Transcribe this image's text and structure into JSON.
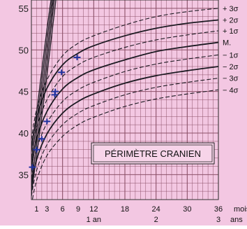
{
  "chart_data": {
    "type": "line",
    "title": "PÉRIMÈTRE CRANIEN",
    "xlabel": "",
    "ylabel": "",
    "x_unit_label": "mois",
    "x_unit_label_years": "ans",
    "xlim": [
      0,
      36
    ],
    "ylim": [
      32,
      56
    ],
    "x_ticks": [
      {
        "value": 1,
        "label": "1"
      },
      {
        "value": 3,
        "label": "3"
      },
      {
        "value": 6,
        "label": "6"
      },
      {
        "value": 9,
        "label": "9"
      },
      {
        "value": 12,
        "label": "12"
      },
      {
        "value": 18,
        "label": "18"
      },
      {
        "value": 24,
        "label": "24"
      },
      {
        "value": 30,
        "label": "30"
      },
      {
        "value": 36,
        "label": "36"
      }
    ],
    "x_year_ticks": [
      {
        "value": 12,
        "label": "1 an"
      },
      {
        "value": 24,
        "label": "2"
      },
      {
        "value": 36,
        "label": "3"
      }
    ],
    "y_ticks": [
      35,
      40,
      45,
      50,
      55
    ],
    "grid": true,
    "colors": {
      "background": "#f3c7e2",
      "grid": "#8c5068",
      "curves": "#1c1a22",
      "markers": "#2233a0"
    },
    "series": [
      {
        "name": "+3σ",
        "style": "dashed",
        "points": [
          [
            0,
            39.2
          ],
          [
            1,
            42.8
          ],
          [
            3,
            46.4
          ],
          [
            6,
            49.3
          ],
          [
            9,
            50.8
          ],
          [
            12,
            51.7
          ],
          [
            18,
            53.0
          ],
          [
            24,
            54.0
          ],
          [
            30,
            54.6
          ],
          [
            36,
            55.0
          ]
        ]
      },
      {
        "name": "+2σ",
        "style": "solid",
        "points": [
          [
            0,
            38.2
          ],
          [
            1,
            41.8
          ],
          [
            3,
            45.4
          ],
          [
            6,
            48.2
          ],
          [
            9,
            49.6
          ],
          [
            12,
            50.5
          ],
          [
            18,
            51.7
          ],
          [
            24,
            52.6
          ],
          [
            30,
            53.2
          ],
          [
            36,
            53.6
          ]
        ]
      },
      {
        "name": "+1σ",
        "style": "dashed",
        "points": [
          [
            0,
            37.0
          ],
          [
            1,
            40.6
          ],
          [
            3,
            44.0
          ],
          [
            6,
            46.8
          ],
          [
            9,
            48.2
          ],
          [
            12,
            49.1
          ],
          [
            18,
            50.3
          ],
          [
            24,
            51.2
          ],
          [
            30,
            51.8
          ],
          [
            36,
            52.3
          ]
        ]
      },
      {
        "name": "M.",
        "style": "solid",
        "points": [
          [
            0,
            35.8
          ],
          [
            1,
            39.3
          ],
          [
            3,
            42.6
          ],
          [
            6,
            45.3
          ],
          [
            9,
            46.7
          ],
          [
            12,
            47.6
          ],
          [
            18,
            48.8
          ],
          [
            24,
            49.8
          ],
          [
            30,
            50.4
          ],
          [
            36,
            50.9
          ]
        ]
      },
      {
        "name": "−1σ",
        "style": "dashed",
        "points": [
          [
            0,
            34.5
          ],
          [
            1,
            38.0
          ],
          [
            3,
            41.2
          ],
          [
            6,
            43.8
          ],
          [
            9,
            45.2
          ],
          [
            12,
            46.1
          ],
          [
            18,
            47.4
          ],
          [
            24,
            48.3
          ],
          [
            30,
            48.9
          ],
          [
            36,
            49.4
          ]
        ]
      },
      {
        "name": "−2σ",
        "style": "solid",
        "points": [
          [
            0,
            33.5
          ],
          [
            1,
            36.8
          ],
          [
            3,
            39.9
          ],
          [
            6,
            42.4
          ],
          [
            9,
            43.8
          ],
          [
            12,
            44.7
          ],
          [
            18,
            46.0
          ],
          [
            24,
            46.9
          ],
          [
            30,
            47.5
          ],
          [
            36,
            48.0
          ]
        ]
      },
      {
        "name": "−3σ",
        "style": "dashed",
        "points": [
          [
            0,
            32.4
          ],
          [
            1,
            35.5
          ],
          [
            3,
            38.6
          ],
          [
            6,
            41.0
          ],
          [
            9,
            42.4
          ],
          [
            12,
            43.3
          ],
          [
            18,
            44.6
          ],
          [
            24,
            45.5
          ],
          [
            30,
            46.1
          ],
          [
            36,
            46.6
          ]
        ]
      },
      {
        "name": "−4σ",
        "style": "dashed",
        "points": [
          [
            0,
            31.3
          ],
          [
            1,
            34.3
          ],
          [
            3,
            37.3
          ],
          [
            6,
            39.6
          ],
          [
            9,
            41.0
          ],
          [
            12,
            41.9
          ],
          [
            18,
            43.2
          ],
          [
            24,
            44.1
          ],
          [
            30,
            44.7
          ],
          [
            36,
            45.2
          ]
        ]
      }
    ],
    "weight_curves": [
      {
        "style": "solid",
        "points": [
          [
            0,
            37.8
          ],
          [
            1,
            42.5
          ],
          [
            2,
            47.5
          ],
          [
            3,
            52.5
          ],
          [
            4,
            57.0
          ]
        ]
      },
      {
        "style": "solid",
        "points": [
          [
            0,
            36.6
          ],
          [
            1,
            41.3
          ],
          [
            2,
            46.2
          ],
          [
            3,
            51.2
          ],
          [
            4.2,
            57.0
          ]
        ]
      },
      {
        "style": "solid",
        "points": [
          [
            0,
            35.3
          ],
          [
            1,
            40.0
          ],
          [
            2,
            44.8
          ],
          [
            3,
            49.8
          ],
          [
            4.4,
            57.0
          ]
        ]
      },
      {
        "style": "solid",
        "points": [
          [
            0,
            34.0
          ],
          [
            1,
            38.6
          ],
          [
            2,
            43.4
          ],
          [
            3,
            48.4
          ],
          [
            4.6,
            57.0
          ]
        ]
      },
      {
        "style": "solid",
        "points": [
          [
            0,
            32.8
          ],
          [
            1,
            37.3
          ],
          [
            2,
            42.0
          ],
          [
            3,
            47.0
          ],
          [
            4.9,
            57.0
          ]
        ]
      }
    ],
    "measurements": [
      {
        "x": 0.2,
        "y": 35.9
      },
      {
        "x": 1.0,
        "y": 38.0
      },
      {
        "x": 2.0,
        "y": 39.3
      },
      {
        "x": 3.0,
        "y": 41.4
      },
      {
        "x": 4.5,
        "y": 44.6
      },
      {
        "x": 4.6,
        "y": 45.0
      },
      {
        "x": 5.8,
        "y": 47.3
      },
      {
        "x": 8.8,
        "y": 49.1
      }
    ],
    "legend_labels": [
      "+ 3σ",
      "+ 2σ",
      "+ 1σ",
      "M.",
      "− 1σ",
      "− 2σ",
      "− 3σ",
      "− 4σ"
    ]
  }
}
